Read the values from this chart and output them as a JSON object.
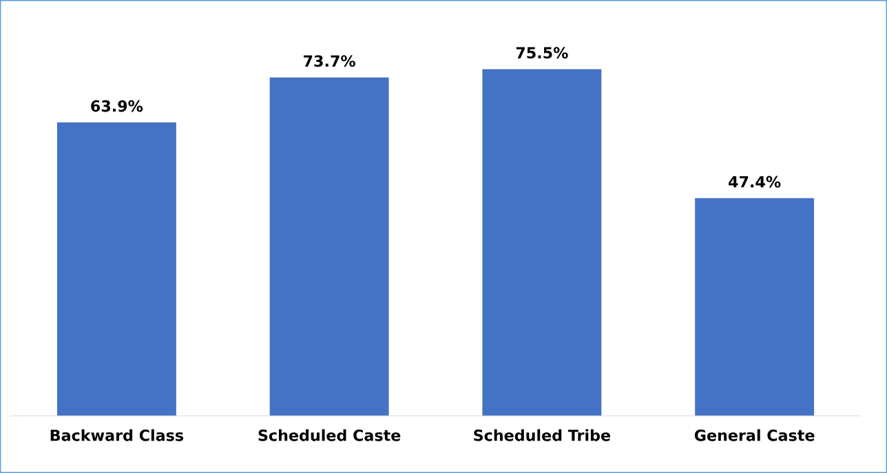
{
  "chart_data": {
    "type": "bar",
    "categories": [
      "Backward Class",
      "Scheduled Caste",
      "Scheduled Tribe",
      "General Caste"
    ],
    "values": [
      63.9,
      73.7,
      75.5,
      47.4
    ],
    "value_labels": [
      "63.9%",
      "73.7%",
      "75.5%",
      "47.4%"
    ],
    "color": "#4472c4",
    "tick_labels": "x",
    "grid": false,
    "legend": false
  }
}
